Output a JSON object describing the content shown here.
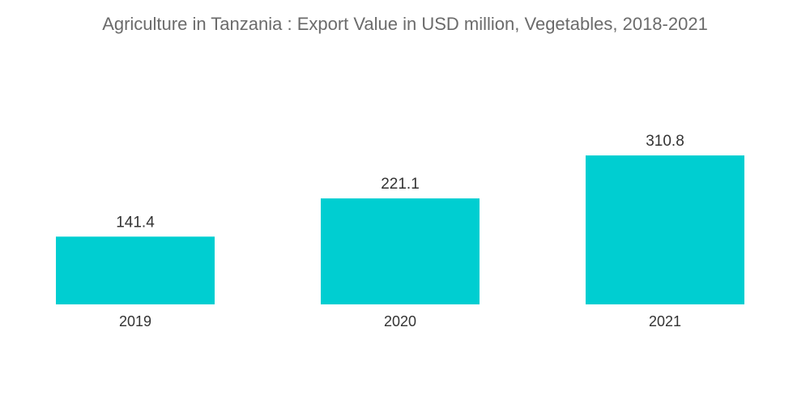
{
  "chart_data": {
    "type": "bar",
    "title": "Agriculture in Tanzania : Export Value in USD million, Vegetables, 2018-2021",
    "categories": [
      "2019",
      "2020",
      "2021"
    ],
    "values": [
      141.4,
      221.1,
      310.8
    ],
    "value_labels": [
      "141.4",
      "221.1",
      "310.8"
    ],
    "xlabel": "",
    "ylabel": "",
    "ylim": [
      0,
      310.8
    ],
    "grid": false,
    "legend": "none",
    "bar_color": "#00CED1"
  }
}
